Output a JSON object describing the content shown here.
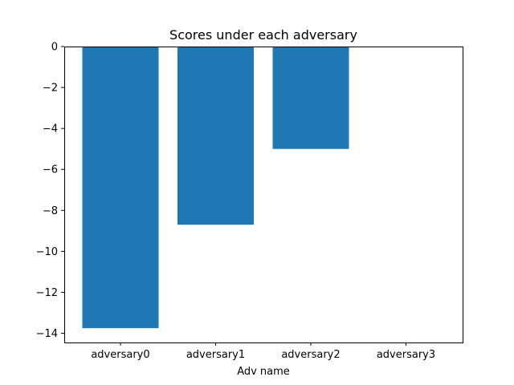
{
  "chart_data": {
    "type": "bar",
    "title": "Scores under each adversary",
    "xlabel": "Adv name",
    "ylabel": "",
    "categories": [
      "adversary0",
      "adversary1",
      "adversary2",
      "adversary3"
    ],
    "values": [
      -13.75,
      -8.7,
      -5.0,
      0.0
    ],
    "ylim": [
      -14.45,
      0
    ],
    "yticks": [
      0,
      -2,
      -4,
      -6,
      -8,
      -10,
      -12,
      -14
    ],
    "ytick_labels": [
      "0",
      "−2",
      "−4",
      "−6",
      "−8",
      "−10",
      "−12",
      "−14"
    ],
    "bar_color": "#1f77b4",
    "grid": false,
    "legend": false
  }
}
